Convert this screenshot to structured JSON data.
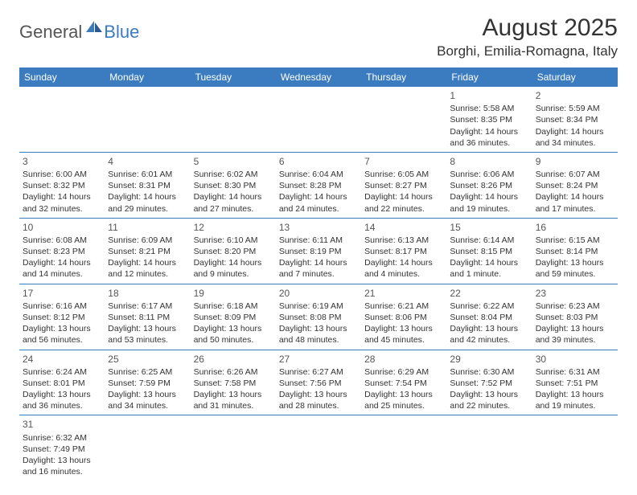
{
  "logo": {
    "part1": "General",
    "part2": "Blue"
  },
  "title": "August 2025",
  "location": "Borghi, Emilia-Romagna, Italy",
  "colors": {
    "header_bg": "#3b7bbf",
    "header_text": "#ffffff",
    "text": "#333333",
    "logo_gray": "#555555",
    "logo_blue": "#3b7bbf",
    "row_border": "#3b7bbf"
  },
  "weekdays": [
    "Sunday",
    "Monday",
    "Tuesday",
    "Wednesday",
    "Thursday",
    "Friday",
    "Saturday"
  ],
  "weeks": [
    [
      null,
      null,
      null,
      null,
      null,
      {
        "n": "1",
        "sr": "5:58 AM",
        "ss": "8:35 PM",
        "dl": "14 hours and 36 minutes."
      },
      {
        "n": "2",
        "sr": "5:59 AM",
        "ss": "8:34 PM",
        "dl": "14 hours and 34 minutes."
      }
    ],
    [
      {
        "n": "3",
        "sr": "6:00 AM",
        "ss": "8:32 PM",
        "dl": "14 hours and 32 minutes."
      },
      {
        "n": "4",
        "sr": "6:01 AM",
        "ss": "8:31 PM",
        "dl": "14 hours and 29 minutes."
      },
      {
        "n": "5",
        "sr": "6:02 AM",
        "ss": "8:30 PM",
        "dl": "14 hours and 27 minutes."
      },
      {
        "n": "6",
        "sr": "6:04 AM",
        "ss": "8:28 PM",
        "dl": "14 hours and 24 minutes."
      },
      {
        "n": "7",
        "sr": "6:05 AM",
        "ss": "8:27 PM",
        "dl": "14 hours and 22 minutes."
      },
      {
        "n": "8",
        "sr": "6:06 AM",
        "ss": "8:26 PM",
        "dl": "14 hours and 19 minutes."
      },
      {
        "n": "9",
        "sr": "6:07 AM",
        "ss": "8:24 PM",
        "dl": "14 hours and 17 minutes."
      }
    ],
    [
      {
        "n": "10",
        "sr": "6:08 AM",
        "ss": "8:23 PM",
        "dl": "14 hours and 14 minutes."
      },
      {
        "n": "11",
        "sr": "6:09 AM",
        "ss": "8:21 PM",
        "dl": "14 hours and 12 minutes."
      },
      {
        "n": "12",
        "sr": "6:10 AM",
        "ss": "8:20 PM",
        "dl": "14 hours and 9 minutes."
      },
      {
        "n": "13",
        "sr": "6:11 AM",
        "ss": "8:19 PM",
        "dl": "14 hours and 7 minutes."
      },
      {
        "n": "14",
        "sr": "6:13 AM",
        "ss": "8:17 PM",
        "dl": "14 hours and 4 minutes."
      },
      {
        "n": "15",
        "sr": "6:14 AM",
        "ss": "8:15 PM",
        "dl": "14 hours and 1 minute."
      },
      {
        "n": "16",
        "sr": "6:15 AM",
        "ss": "8:14 PM",
        "dl": "13 hours and 59 minutes."
      }
    ],
    [
      {
        "n": "17",
        "sr": "6:16 AM",
        "ss": "8:12 PM",
        "dl": "13 hours and 56 minutes."
      },
      {
        "n": "18",
        "sr": "6:17 AM",
        "ss": "8:11 PM",
        "dl": "13 hours and 53 minutes."
      },
      {
        "n": "19",
        "sr": "6:18 AM",
        "ss": "8:09 PM",
        "dl": "13 hours and 50 minutes."
      },
      {
        "n": "20",
        "sr": "6:19 AM",
        "ss": "8:08 PM",
        "dl": "13 hours and 48 minutes."
      },
      {
        "n": "21",
        "sr": "6:21 AM",
        "ss": "8:06 PM",
        "dl": "13 hours and 45 minutes."
      },
      {
        "n": "22",
        "sr": "6:22 AM",
        "ss": "8:04 PM",
        "dl": "13 hours and 42 minutes."
      },
      {
        "n": "23",
        "sr": "6:23 AM",
        "ss": "8:03 PM",
        "dl": "13 hours and 39 minutes."
      }
    ],
    [
      {
        "n": "24",
        "sr": "6:24 AM",
        "ss": "8:01 PM",
        "dl": "13 hours and 36 minutes."
      },
      {
        "n": "25",
        "sr": "6:25 AM",
        "ss": "7:59 PM",
        "dl": "13 hours and 34 minutes."
      },
      {
        "n": "26",
        "sr": "6:26 AM",
        "ss": "7:58 PM",
        "dl": "13 hours and 31 minutes."
      },
      {
        "n": "27",
        "sr": "6:27 AM",
        "ss": "7:56 PM",
        "dl": "13 hours and 28 minutes."
      },
      {
        "n": "28",
        "sr": "6:29 AM",
        "ss": "7:54 PM",
        "dl": "13 hours and 25 minutes."
      },
      {
        "n": "29",
        "sr": "6:30 AM",
        "ss": "7:52 PM",
        "dl": "13 hours and 22 minutes."
      },
      {
        "n": "30",
        "sr": "6:31 AM",
        "ss": "7:51 PM",
        "dl": "13 hours and 19 minutes."
      }
    ],
    [
      {
        "n": "31",
        "sr": "6:32 AM",
        "ss": "7:49 PM",
        "dl": "13 hours and 16 minutes."
      },
      null,
      null,
      null,
      null,
      null,
      null
    ]
  ],
  "labels": {
    "sunrise": "Sunrise:",
    "sunset": "Sunset:",
    "daylight": "Daylight:"
  }
}
